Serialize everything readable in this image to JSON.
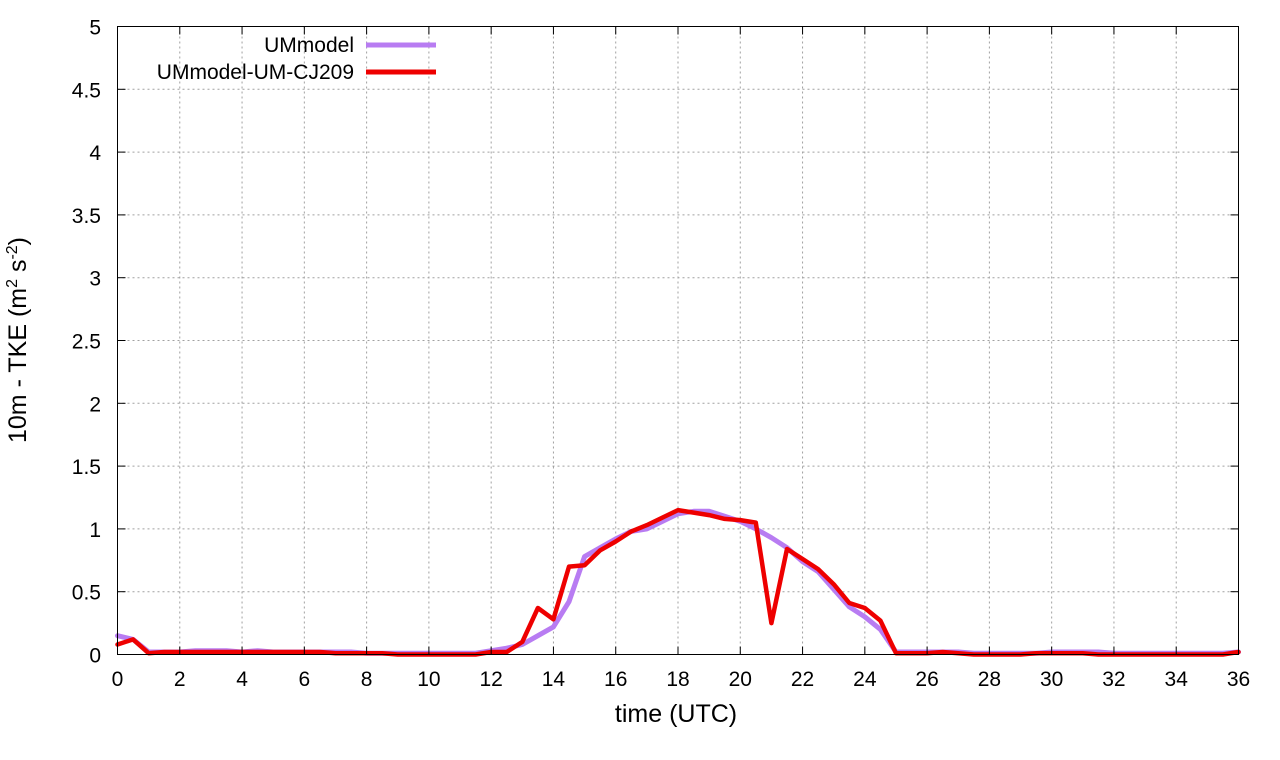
{
  "chart_data": {
    "type": "line",
    "xlabel": "time (UTC)",
    "ylabel_main": "10m - TKE (m",
    "ylabel_sup1": "2",
    "ylabel_mid": " s",
    "ylabel_sup2": "-2",
    "ylabel_end": ")",
    "xlim": [
      0,
      36
    ],
    "ylim": [
      0,
      5
    ],
    "xticks": [
      0,
      2,
      4,
      6,
      8,
      10,
      12,
      14,
      16,
      18,
      20,
      22,
      24,
      26,
      28,
      30,
      32,
      34,
      36
    ],
    "yticks": [
      0,
      0.5,
      1,
      1.5,
      2,
      2.5,
      3,
      3.5,
      4,
      4.5,
      5
    ],
    "ytick_labels": [
      "0",
      "0.5",
      "1",
      "1.5",
      "2",
      "2.5",
      "3",
      "3.5",
      "4",
      "4.5",
      "5"
    ],
    "grid": true,
    "legend_position": "top-left",
    "series": [
      {
        "name": "UMmodel",
        "color": "#b87cf2",
        "x": [
          0,
          0.5,
          1,
          1.5,
          2,
          2.5,
          3,
          3.5,
          4,
          4.5,
          5,
          5.5,
          6,
          6.5,
          7,
          7.5,
          8,
          8.5,
          9,
          9.5,
          10,
          10.5,
          11,
          11.5,
          12,
          12.5,
          13,
          13.5,
          14,
          14.5,
          15,
          15.5,
          16,
          16.5,
          17,
          17.5,
          18,
          18.5,
          19,
          19.5,
          20,
          20.5,
          21,
          21.5,
          22,
          22.5,
          23,
          23.5,
          24,
          24.5,
          25,
          25.5,
          26,
          26.5,
          27,
          27.5,
          28,
          28.5,
          29,
          29.5,
          30,
          30.5,
          31,
          31.5,
          32,
          32.5,
          33,
          33.5,
          34,
          34.5,
          35,
          35.5,
          36
        ],
        "values": [
          0.15,
          0.12,
          0.02,
          0.02,
          0.02,
          0.03,
          0.03,
          0.03,
          0.02,
          0.03,
          0.02,
          0.02,
          0.02,
          0.02,
          0.02,
          0.02,
          0.01,
          0.01,
          0.01,
          0.01,
          0.01,
          0.01,
          0.01,
          0.01,
          0.03,
          0.05,
          0.08,
          0.15,
          0.22,
          0.42,
          0.78,
          0.85,
          0.92,
          0.98,
          1.0,
          1.06,
          1.12,
          1.14,
          1.14,
          1.1,
          1.06,
          1.0,
          0.93,
          0.85,
          0.74,
          0.66,
          0.52,
          0.38,
          0.3,
          0.2,
          0.02,
          0.02,
          0.02,
          0.02,
          0.02,
          0.01,
          0.01,
          0.01,
          0.01,
          0.01,
          0.02,
          0.02,
          0.02,
          0.02,
          0.01,
          0.01,
          0.01,
          0.01,
          0.01,
          0.01,
          0.01,
          0.01,
          0.02
        ]
      },
      {
        "name": "UMmodel-UM-CJ209",
        "color": "#ee0000",
        "x": [
          0,
          0.5,
          1,
          1.5,
          2,
          2.5,
          3,
          3.5,
          4,
          4.5,
          5,
          5.5,
          6,
          6.5,
          7,
          7.5,
          8,
          8.5,
          9,
          9.5,
          10,
          10.5,
          11,
          11.5,
          12,
          12.5,
          13,
          13.5,
          14,
          14.5,
          15,
          15.5,
          16,
          16.5,
          17,
          17.5,
          18,
          18.5,
          19,
          19.5,
          20,
          20.5,
          21,
          21.5,
          22,
          22.5,
          23,
          23.5,
          24,
          24.5,
          25,
          25.5,
          26,
          26.5,
          27,
          27.5,
          28,
          28.5,
          29,
          29.5,
          30,
          30.5,
          31,
          31.5,
          32,
          32.5,
          33,
          33.5,
          34,
          34.5,
          35,
          35.5,
          36
        ],
        "values": [
          0.08,
          0.12,
          0.01,
          0.02,
          0.02,
          0.02,
          0.02,
          0.02,
          0.02,
          0.02,
          0.02,
          0.02,
          0.02,
          0.02,
          0.01,
          0.01,
          0.01,
          0.01,
          0.0,
          0.0,
          0.0,
          0.0,
          0.0,
          0.0,
          0.02,
          0.02,
          0.1,
          0.37,
          0.28,
          0.7,
          0.71,
          0.83,
          0.9,
          0.98,
          1.03,
          1.09,
          1.15,
          1.13,
          1.11,
          1.08,
          1.07,
          1.05,
          0.25,
          0.84,
          0.76,
          0.68,
          0.56,
          0.41,
          0.37,
          0.27,
          0.01,
          0.01,
          0.01,
          0.02,
          0.01,
          0.0,
          0.0,
          0.0,
          0.0,
          0.01,
          0.01,
          0.01,
          0.01,
          0.0,
          0.0,
          0.0,
          0.0,
          0.0,
          0.0,
          0.0,
          0.0,
          0.0,
          0.02
        ]
      }
    ]
  }
}
